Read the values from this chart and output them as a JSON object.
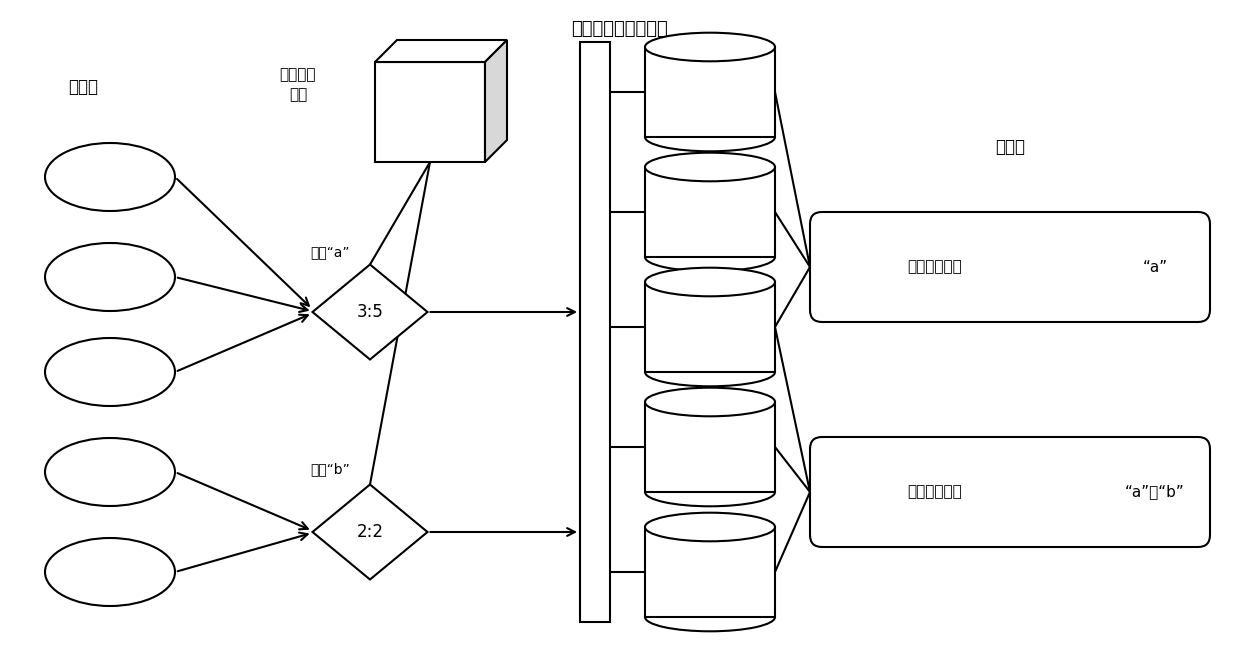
{
  "title": "卡萨分布式文件系统",
  "writer_label": "写入器",
  "coord_label1": "协调通信",
  "coord_label2": "组件",
  "reader_label": "读取器",
  "record_a_label": "记录“a”",
  "record_b_label": "记录“b”",
  "diamond_a_text": "3:5",
  "diamond_b_text": "2:2",
  "reader1_left": "重复数据删除",
  "reader1_right": "“a”",
  "reader2_left": "重复数据删除",
  "reader2_right": "“a”和“b”",
  "bg_color": "#ffffff",
  "line_color": "#000000",
  "fill_color": "#ffffff",
  "font_size": 12,
  "title_font_size": 13
}
